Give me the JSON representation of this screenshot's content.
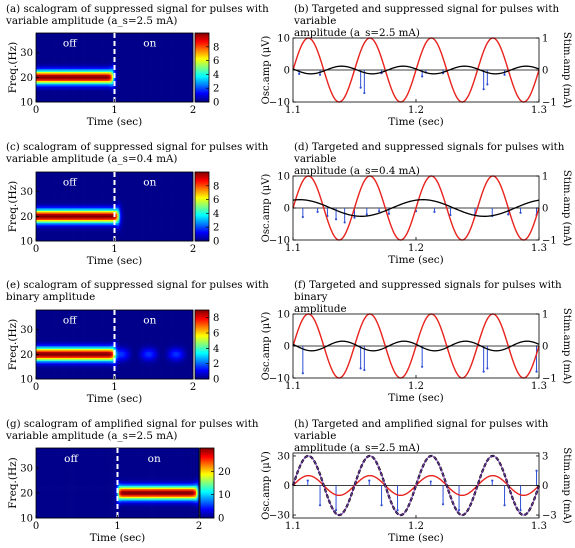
{
  "chart_data": [
    {
      "id": "a",
      "type": "heatmap",
      "caption": "(a) scalogram of suppressed signal for pulses with\nvariable amplitude (a_s=2.5 mA)",
      "xlabel": "Time (sec)",
      "ylabel": "Freq.(Hz)",
      "xlim": [
        0,
        2
      ],
      "ylim": [
        10,
        38
      ],
      "xticks": [
        "0",
        "1",
        "2"
      ],
      "yticks": [
        "10",
        "20",
        "30"
      ],
      "annotations": [
        "off",
        "on"
      ],
      "switch_time": 1,
      "band": {
        "center_hz": 20,
        "start": 0,
        "end": 0.98,
        "peak": 10,
        "tail_level": 0
      },
      "colorbar": {
        "ticks": [
          "0",
          "2",
          "4",
          "6",
          "8"
        ],
        "range": [
          0,
          10
        ]
      }
    },
    {
      "id": "c",
      "type": "heatmap",
      "caption": "(c) scalogram of suppressed signal for pulses with\nvariable amplitude (a_s=0.4 mA)",
      "xlabel": "Time (sec)",
      "ylabel": "Freq.(Hz)",
      "xlim": [
        0,
        2
      ],
      "ylim": [
        10,
        38
      ],
      "xticks": [
        "0",
        "1",
        "2"
      ],
      "yticks": [
        "10",
        "20",
        "30"
      ],
      "annotations": [
        "off",
        "on"
      ],
      "switch_time": 1,
      "band": {
        "center_hz": 20,
        "start": 0,
        "end": 1.05,
        "peak": 10,
        "tail_level": 0
      },
      "colorbar": {
        "ticks": [
          "0",
          "2",
          "4",
          "6",
          "8"
        ],
        "range": [
          0,
          10
        ]
      }
    },
    {
      "id": "e",
      "type": "heatmap",
      "caption": "(e) scalogram of suppressed signal for pulses with\nbinary amplitude",
      "xlabel": "Time (sec)",
      "ylabel": "Freq.(Hz)",
      "xlim": [
        0,
        2
      ],
      "ylim": [
        10,
        38
      ],
      "xticks": [
        "0",
        "1",
        "2"
      ],
      "yticks": [
        "10",
        "20",
        "30"
      ],
      "annotations": [
        "off",
        "on"
      ],
      "switch_time": 1,
      "band": {
        "center_hz": 20,
        "start": 0,
        "end": 1.0,
        "peak": 9,
        "tail_level": 1.5
      },
      "colorbar": {
        "ticks": [
          "0",
          "2",
          "4",
          "6",
          "8"
        ],
        "range": [
          0,
          9
        ]
      }
    },
    {
      "id": "g",
      "type": "heatmap",
      "caption": "(g) scalogram of amplified signal for pulses with\nvariable amplitude (a_s=2.5 mA)",
      "xlabel": "Time (sec)",
      "ylabel": "Freq.(Hz)",
      "xlim": [
        0,
        2
      ],
      "ylim": [
        10,
        38
      ],
      "xticks": [
        "0",
        "1",
        "2"
      ],
      "yticks": [
        "10",
        "20",
        "30"
      ],
      "annotations": [
        "off",
        "on"
      ],
      "switch_time": 1,
      "band": {
        "center_hz": 20,
        "start": 1.0,
        "end": 1.98,
        "peak": 30,
        "tail_level": 0
      },
      "colorbar": {
        "ticks": [
          "0",
          "10",
          "20"
        ],
        "range": [
          0,
          30
        ]
      }
    },
    {
      "id": "b",
      "type": "line",
      "caption": "(b) Targeted and suppressed signal for pulses with variable\namplitude (a_s=2.5 mA)",
      "xlabel": "Time (sec)",
      "ylabel": "Osc.amp (μV)",
      "y2label": "Stim.amp (mA)",
      "xlim": [
        1.1,
        1.3
      ],
      "ylim": [
        -10,
        10
      ],
      "y2lim": [
        -1,
        1
      ],
      "xticks": [
        "1.1",
        "1.2",
        "1.3"
      ],
      "yticks": [
        "−10",
        "0",
        "10"
      ],
      "y2ticks": [
        "−1",
        "0",
        "1"
      ],
      "series": [
        {
          "role": "targeted",
          "color": "#e8231e",
          "amplitude": 10,
          "freq_hz": 20,
          "phase_deg": 0
        },
        {
          "role": "suppressed",
          "color": "#000000",
          "amplitude": 1.2,
          "freq_hz": 20,
          "phase_deg": 165
        }
      ],
      "pulses": {
        "color": "#2d4fd6",
        "times": [
          1.105,
          1.122,
          1.155,
          1.158,
          1.172,
          1.205,
          1.208,
          1.222,
          1.255,
          1.258,
          1.272
        ],
        "amplitude_ma": [
          -0.12,
          -0.15,
          -0.55,
          -0.72,
          -0.1,
          -0.2,
          -0.08,
          -0.1,
          -0.6,
          -0.45,
          -0.15
        ]
      }
    },
    {
      "id": "d",
      "type": "line",
      "caption": "(d) Targeted and suppressed signals for pulses with variable\namplitude (a_s=0.4 mA)",
      "xlabel": "Time (sec)",
      "ylabel": "Osc.amp (μV)",
      "y2label": "Stim.amp (mA)",
      "xlim": [
        1.1,
        1.3
      ],
      "ylim": [
        -10,
        10
      ],
      "y2lim": [
        -1,
        1
      ],
      "xticks": [
        "1.1",
        "1.2",
        "1.3"
      ],
      "yticks": [
        "−10",
        "0",
        "10"
      ],
      "y2ticks": [
        "−1",
        "0",
        "1"
      ],
      "series": [
        {
          "role": "targeted",
          "color": "#e8231e",
          "amplitude": 10,
          "freq_hz": 20,
          "phase_deg": 0
        },
        {
          "role": "suppressed",
          "color": "#000000",
          "amplitude": 2.6,
          "freq_hz": 10,
          "phase_deg": 70
        }
      ],
      "pulses": {
        "color": "#2d4fd6",
        "times": [
          1.108,
          1.12,
          1.128,
          1.135,
          1.142,
          1.15,
          1.16,
          1.17,
          1.178,
          1.2,
          1.215,
          1.228,
          1.248,
          1.262,
          1.275,
          1.285,
          1.298
        ],
        "amplitude_ma": [
          -0.28,
          -0.12,
          -0.25,
          -0.35,
          -0.45,
          -0.3,
          -0.2,
          -0.1,
          -0.18,
          -0.1,
          -0.12,
          -0.22,
          -0.2,
          -0.25,
          -0.2,
          -0.15,
          -0.22
        ]
      }
    },
    {
      "id": "f",
      "type": "line",
      "caption": "(f) Targeted and suppressed signals for pulses with binary\namplitude",
      "xlabel": "Time (sec)",
      "ylabel": "Osc.amp (μV)",
      "y2label": "Stim.amp (mA)",
      "xlim": [
        1.1,
        1.3
      ],
      "ylim": [
        -10,
        10
      ],
      "y2lim": [
        -1,
        1
      ],
      "xticks": [
        "1.1",
        "1.2",
        "1.3"
      ],
      "yticks": [
        "−10",
        "0",
        "10"
      ],
      "y2ticks": [
        "−1",
        "0",
        "1"
      ],
      "series": [
        {
          "role": "targeted",
          "color": "#e8231e",
          "amplitude": 10,
          "freq_hz": 20,
          "phase_deg": 0
        },
        {
          "role": "suppressed",
          "color": "#000000",
          "amplitude": 1.5,
          "freq_hz": 20,
          "phase_deg": 160
        }
      ],
      "pulses": {
        "color": "#2d4fd6",
        "times": [
          1.108,
          1.155,
          1.158,
          1.205,
          1.255,
          1.258,
          1.298
        ],
        "amplitude_ma": [
          -0.85,
          -0.7,
          -0.75,
          -0.65,
          -0.8,
          -0.7,
          -0.8
        ]
      }
    },
    {
      "id": "h",
      "type": "line",
      "caption": "(h) Targeted and amplified signal for pulses with variable\namplitude (a_s=2.5 mA)",
      "xlabel": "Time (sec)",
      "ylabel": "Osc.amp (μV)",
      "y2label": "Stim.amp (mA)",
      "xlim": [
        1.1,
        1.3
      ],
      "ylim": [
        -33,
        33
      ],
      "y2lim": [
        -3.3,
        3.3
      ],
      "xticks": [
        "1.1",
        "1.2",
        "1.3"
      ],
      "yticks": [
        "−30",
        "0",
        "30"
      ],
      "y2ticks": [
        "−3",
        "0",
        "3"
      ],
      "series": [
        {
          "role": "targeted",
          "color": "#e8231e",
          "amplitude": 10,
          "freq_hz": 20,
          "phase_deg": 0
        },
        {
          "role": "amplified",
          "color": "#000000",
          "amplitude": 30,
          "freq_hz": 20,
          "phase_deg": 0,
          "dashed": true
        },
        {
          "role": "amplified-overlay",
          "color": "#7d3fb5",
          "amplitude": 30,
          "freq_hz": 20,
          "phase_deg": 0
        }
      ],
      "pulses": {
        "color": "#2d4fd6",
        "times": [
          1.112,
          1.122,
          1.135,
          1.162,
          1.172,
          1.185,
          1.212,
          1.222,
          1.235,
          1.262,
          1.272,
          1.285,
          1.298
        ],
        "amplitude_ma": [
          0.5,
          -2.0,
          -2.5,
          0.5,
          -2.0,
          -2.5,
          0.4,
          -1.9,
          -2.5,
          0.5,
          -2.0,
          -2.5,
          1.5
        ]
      }
    }
  ]
}
